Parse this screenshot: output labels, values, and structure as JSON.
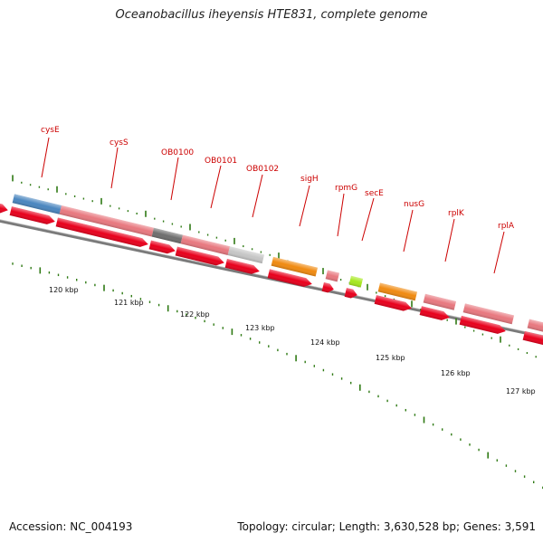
{
  "title": "Oceanobacillus iheyensis HTE831, complete genome",
  "footer": {
    "accession": "Accession: NC_004193",
    "summary": "Topology: circular; Length: 3,630,528 bp; Genes: 3,591"
  },
  "colors": {
    "cds_red": "#e8001c",
    "gene_pink": "#e8787f",
    "gene_blue": "#4a86bf",
    "gene_darkgray": "#6e6e6e",
    "gene_lightgray": "#c6c6c6",
    "gene_orange": "#f08a10",
    "gene_lime": "#a6e81e",
    "backbone": "#7a7a7a",
    "tick_green": "#2f7a14",
    "label_red": "#cc0000"
  },
  "scale_labels": [
    {
      "text": "120 kbp",
      "kbp": 120
    },
    {
      "text": "121 kbp",
      "kbp": 121
    },
    {
      "text": "122 kbp",
      "kbp": 122
    },
    {
      "text": "123 kbp",
      "kbp": 123
    },
    {
      "text": "124 kbp",
      "kbp": 124
    },
    {
      "text": "125 kbp",
      "kbp": 125
    },
    {
      "text": "126 kbp",
      "kbp": 126
    },
    {
      "text": "127 kbp",
      "kbp": 127
    }
  ],
  "gene_labels": [
    "cysE",
    "cysS",
    "OB0100",
    "OB0101",
    "OB0102",
    "sigH",
    "rpmG",
    "secE",
    "nusG",
    "rplK",
    "rplA"
  ]
}
